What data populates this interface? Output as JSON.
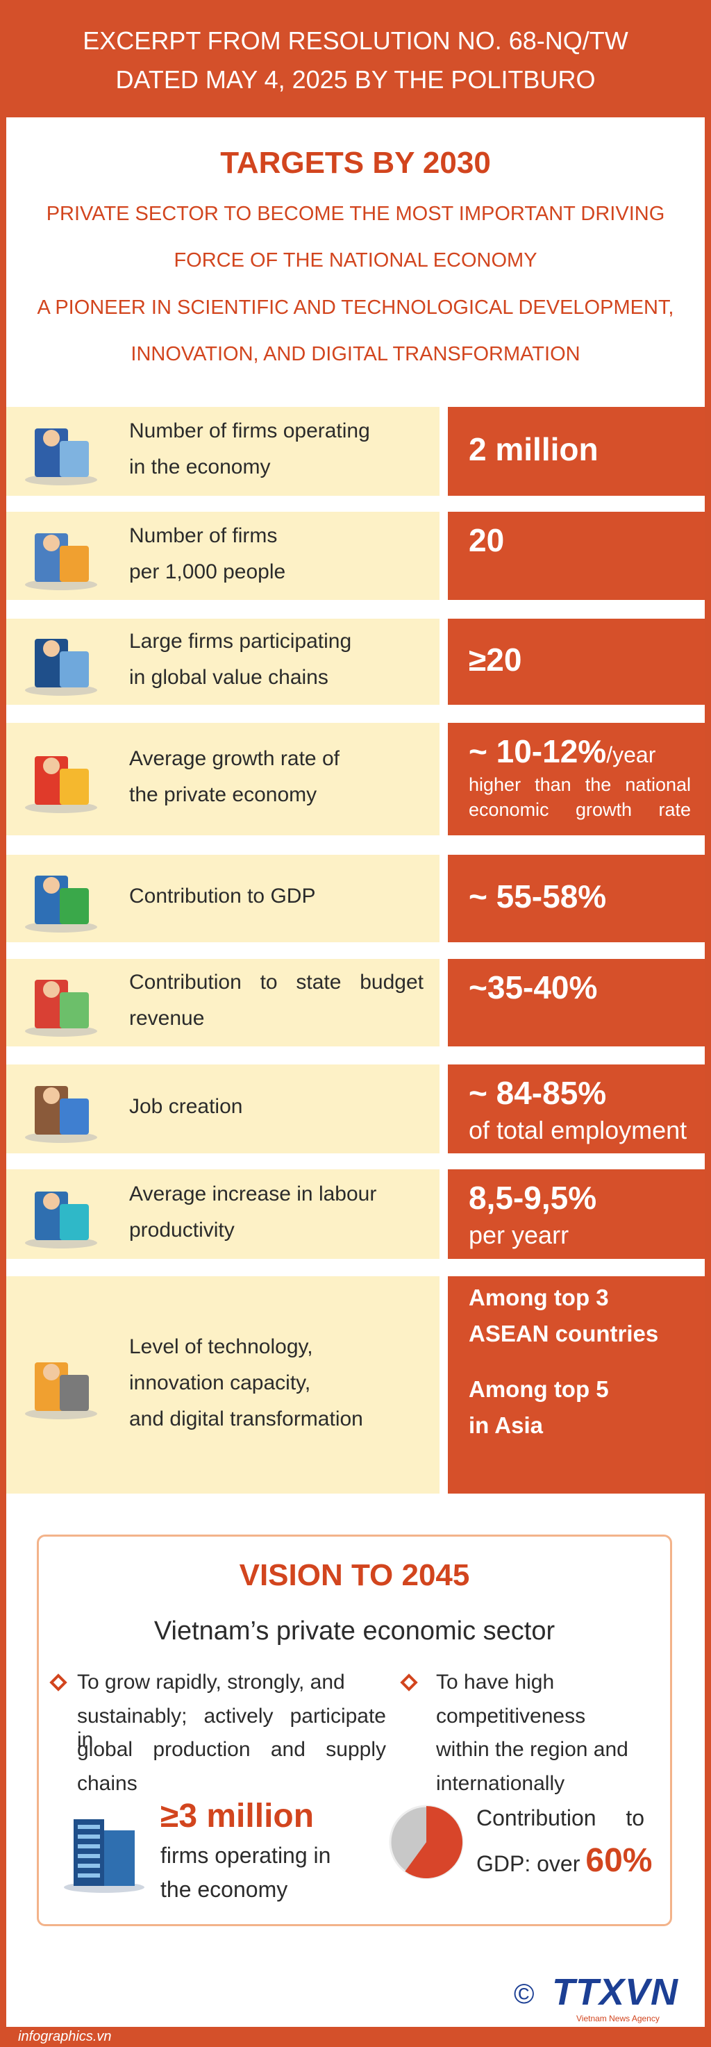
{
  "header": {
    "line1": "EXCERPT FROM RESOLUTION NO. 68-NQ/TW",
    "line2": "DATED MAY 4, 2025 BY THE POLITBURO"
  },
  "targets": {
    "title": "TARGETS BY 2030",
    "subtitle_lines": [
      "PRIVATE SECTOR TO BECOME THE MOST IMPORTANT DRIVING",
      "FORCE OF THE NATIONAL ECONOMY",
      "A PIONEER IN SCIENTIFIC AND TECHNOLOGICAL DEVELOPMENT,",
      "INNOVATION, AND DIGITAL TRANSFORMATION"
    ],
    "rows": [
      {
        "label_lines": [
          "Number of firms operating",
          "in the economy"
        ],
        "value": "2 million"
      },
      {
        "label_lines": [
          "Number of firms",
          "per 1,000 people"
        ],
        "value": "20"
      },
      {
        "label_lines": [
          "Large firms participating",
          "in global value chains"
        ],
        "value": "≥20"
      },
      {
        "label_lines": [
          "Average growth rate of",
          "the private economy"
        ],
        "value": "~ 10-12%",
        "unit": "/year",
        "note_lines": [
          "higher than the national",
          "economic growth rate"
        ]
      },
      {
        "label_lines": [
          "Contribution to GDP"
        ],
        "value": "~ 55-58%"
      },
      {
        "label_lines": [
          "Contribution to state budget",
          "revenue"
        ],
        "value": "~35-40%"
      },
      {
        "label_lines": [
          "Job creation"
        ],
        "value": "~ 84-85%",
        "note_lines": [
          "of total employment"
        ]
      },
      {
        "label_lines": [
          "Average increase in labour",
          "productivity"
        ],
        "value": "8,5-9,5%",
        "note_lines": [
          "per yearr"
        ]
      },
      {
        "label_lines": [
          "Level of technology,",
          "innovation capacity,",
          "and digital transformation"
        ],
        "value_groups": [
          [
            "Among top 3",
            "ASEAN countries"
          ],
          [
            "Among top 5",
            "in Asia"
          ]
        ]
      }
    ]
  },
  "vision": {
    "title": "VISION TO 2045",
    "subtitle": "Vietnam’s private economic sector",
    "left": {
      "bullet_lines": [
        "To grow rapidly, strongly, and",
        "sustainably; actively participate in",
        "global production and supply",
        "chains"
      ],
      "figure": "≥3 million",
      "figure_lines": [
        "firms operating in",
        "the economy"
      ]
    },
    "right": {
      "bullet_lines": [
        "To have high",
        "competitiveness",
        "within the region and",
        "internationally"
      ],
      "text_lines": [
        "Contribution to",
        "GDP: over"
      ],
      "figure": "60%"
    }
  },
  "footer": {
    "source": "infographics.vn",
    "copyright": "©",
    "logo": "TTXVN",
    "agency": "Vietnam News Agency"
  }
}
